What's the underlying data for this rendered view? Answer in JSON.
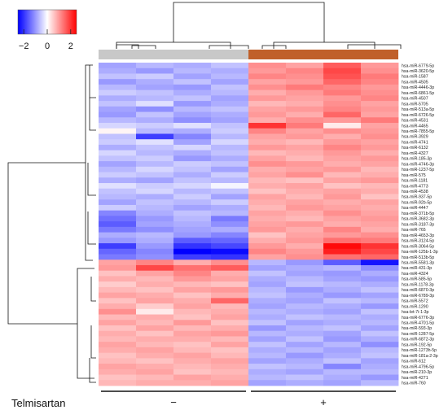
{
  "chart_data": {
    "type": "heatmap",
    "colors": {
      "low": "#0000ff",
      "mid": "#ffffff",
      "high": "#ff0000"
    },
    "color_scale": {
      "min": -2.5,
      "max": 2.5,
      "ticks": [
        -2,
        0,
        2
      ],
      "tick_labels": [
        "−2",
        "0",
        "2"
      ]
    },
    "annotation": {
      "label": "Telmisartan",
      "groups": [
        {
          "label": "−",
          "color": "#c8c8c8",
          "columns": [
            0,
            1,
            2,
            3
          ]
        },
        {
          "label": "+",
          "color": "#c0602a",
          "columns": [
            4,
            5,
            6,
            7
          ]
        }
      ]
    },
    "rows": [
      "hsa-miR-6779-5p",
      "hsa-miR-3620-5p",
      "hsa-miR-1587",
      "hsa-miR-4505",
      "hsa-miR-4446-3p",
      "hsa-miR-6861-5p",
      "hsa-miR-4507",
      "hsa-miR-5705",
      "hsa-miR-513a-5p",
      "hsa-miR-6726-5p",
      "hsa-miR-4531",
      "hsa-miR-4465",
      "hsa-miR-7855-5p",
      "hsa-miR-3929",
      "hsa-miR-4741",
      "hsa-miR-6132",
      "hsa-miR-4327",
      "hsa-miR-185-3p",
      "hsa-miR-4746-3p",
      "hsa-miR-1237-5p",
      "hsa-miR-575",
      "hsa-miR-1181",
      "hsa-miR-4773",
      "hsa-miR-4538",
      "hsa-miR-937-5p",
      "hsa-miR-92b-5p",
      "hsa-miR-4447",
      "hsa-miR-371b-5p",
      "hsa-miR-3682-3p",
      "hsa-miR-3187-3p",
      "hsa-miR-765",
      "hsa-miR-4653-3p",
      "hsa-miR-3124-5p",
      "hsa-miR-3064-5p",
      "hsa-miR-125b-1-3p",
      "hsa-miR-513b-5p",
      "hsa-miR-5581-3p",
      "hsa-miR-431-3p",
      "hsa-miR-4324",
      "hsa-miR-585-5p",
      "hsa-miR-1178-3p",
      "hsa-miR-6870-3p",
      "hsa-miR-6789-3p",
      "hsa-miR-5572",
      "hsa-miR-1290",
      "hsa-let-7i-1-3p",
      "hsa-miR-6776-3p",
      "hsa-miR-4701-5p",
      "hsa-miR-593-3p",
      "hsa-miR-1287-5p",
      "hsa-miR-6872-3p",
      "hsa-miR-192-5p",
      "hsa-miR-1273h-5p",
      "hsa-miR-181a-2-3p",
      "hsa-miR-612",
      "hsa-miR-4796-5p",
      "hsa-miR-210-3p",
      "hsa-miR-4271",
      "hsa-miR-760"
    ],
    "values": [
      [
        -0.9,
        -0.7,
        -0.8,
        -0.6,
        1.1,
        0.9,
        1.6,
        1.0
      ],
      [
        -0.8,
        -1.0,
        -0.7,
        -0.8,
        1.0,
        1.2,
        1.8,
        1.1
      ],
      [
        -0.6,
        -0.5,
        -0.9,
        -0.7,
        1.2,
        1.1,
        1.7,
        1.3
      ],
      [
        -1.0,
        -0.8,
        -0.6,
        -0.9,
        0.9,
        1.0,
        1.5,
        1.2
      ],
      [
        -0.7,
        -0.9,
        -1.0,
        -0.6,
        1.1,
        1.3,
        1.2,
        1.0
      ],
      [
        -0.5,
        -0.6,
        -0.8,
        -0.7,
        0.8,
        1.0,
        1.3,
        1.1
      ],
      [
        -0.8,
        -0.7,
        -0.6,
        -0.9,
        1.0,
        0.9,
        1.0,
        1.2
      ],
      [
        -0.6,
        -0.3,
        -1.0,
        -0.8,
        0.7,
        0.8,
        1.1,
        0.9
      ],
      [
        -0.9,
        -1.1,
        -0.7,
        -0.6,
        0.9,
        1.0,
        1.2,
        1.0
      ],
      [
        -1.0,
        -0.6,
        -0.9,
        -0.8,
        1.0,
        0.8,
        1.5,
        0.9
      ],
      [
        -0.7,
        -0.8,
        -1.1,
        -0.9,
        0.8,
        1.1,
        1.0,
        1.3
      ],
      [
        -0.4,
        -0.5,
        -0.3,
        -0.6,
        2.0,
        1.3,
        0.2,
        0.9
      ],
      [
        0.1,
        -0.7,
        -0.8,
        -0.5,
        1.2,
        0.9,
        1.1,
        1.0
      ],
      [
        -0.6,
        -1.9,
        -1.2,
        -0.7,
        0.9,
        1.0,
        0.8,
        1.1
      ],
      [
        -0.5,
        -0.3,
        -0.9,
        -0.4,
        0.8,
        0.7,
        1.0,
        0.9
      ],
      [
        -0.8,
        -0.6,
        -0.4,
        -0.7,
        1.0,
        0.9,
        1.2,
        1.0
      ],
      [
        -0.4,
        -0.7,
        -0.8,
        -0.6,
        0.7,
        0.8,
        1.0,
        0.8
      ],
      [
        -0.6,
        -0.5,
        -1.0,
        -0.8,
        0.9,
        0.7,
        0.9,
        1.0
      ],
      [
        -0.9,
        -0.7,
        -0.5,
        -0.6,
        1.1,
        1.0,
        0.8,
        0.9
      ],
      [
        -0.7,
        -0.4,
        -0.6,
        -0.9,
        0.8,
        0.9,
        1.0,
        0.7
      ],
      [
        -0.5,
        -0.6,
        -0.8,
        -0.5,
        0.9,
        1.1,
        0.7,
        0.8
      ],
      [
        -0.8,
        -0.9,
        -0.6,
        -0.7,
        0.7,
        0.6,
        0.9,
        1.0
      ],
      [
        -0.3,
        -0.5,
        -0.4,
        -0.1,
        0.8,
        0.9,
        0.6,
        0.7
      ],
      [
        -0.6,
        -0.4,
        -0.7,
        -0.6,
        0.6,
        0.8,
        0.9,
        0.8
      ],
      [
        -0.7,
        -0.8,
        -0.5,
        -0.9,
        0.9,
        0.7,
        1.0,
        0.6
      ],
      [
        -0.9,
        -0.6,
        -0.7,
        -0.5,
        0.8,
        0.9,
        0.8,
        0.9
      ],
      [
        -0.5,
        -0.7,
        -0.9,
        -0.8,
        0.7,
        1.0,
        0.9,
        0.8
      ],
      [
        -1.2,
        -0.8,
        -0.6,
        -0.7,
        0.9,
        0.8,
        1.1,
        0.9
      ],
      [
        -1.4,
        -1.0,
        -0.7,
        -1.3,
        0.8,
        0.7,
        0.9,
        1.0
      ],
      [
        -1.6,
        -0.9,
        -0.8,
        -1.1,
        0.9,
        1.0,
        0.8,
        0.9
      ],
      [
        -1.3,
        -1.1,
        -0.9,
        -0.8,
        1.0,
        0.8,
        1.2,
        0.8
      ],
      [
        -0.8,
        -0.7,
        -1.0,
        -1.2,
        0.6,
        0.9,
        1.0,
        1.1
      ],
      [
        -1.0,
        -0.8,
        -1.6,
        -1.5,
        0.8,
        1.0,
        1.4,
        1.3
      ],
      [
        -1.9,
        -1.0,
        -2.0,
        -1.8,
        1.0,
        0.8,
        2.4,
        2.0
      ],
      [
        -1.5,
        -1.2,
        -2.5,
        -2.4,
        1.2,
        1.0,
        2.2,
        1.8
      ],
      [
        -1.3,
        -1.1,
        -1.9,
        -2.0,
        0.9,
        1.1,
        1.4,
        1.5
      ],
      [
        0.9,
        1.2,
        0.8,
        1.1,
        -0.7,
        -1.0,
        -1.6,
        -2.3
      ],
      [
        1.0,
        1.8,
        1.4,
        1.6,
        -0.9,
        -0.8,
        -0.7,
        -1.1
      ],
      [
        0.6,
        0.9,
        1.2,
        0.8,
        -0.6,
        -0.9,
        -1.0,
        -0.8
      ],
      [
        0.8,
        0.7,
        1.0,
        0.9,
        -0.8,
        -0.7,
        -0.9,
        -1.0
      ],
      [
        0.5,
        0.8,
        0.7,
        0.6,
        -0.9,
        -0.6,
        -0.7,
        -0.8
      ],
      [
        0.7,
        0.6,
        0.9,
        1.0,
        -0.7,
        -1.0,
        -0.8,
        -0.6
      ],
      [
        0.9,
        0.8,
        0.6,
        0.8,
        -0.6,
        -0.8,
        -1.0,
        -0.9
      ],
      [
        0.6,
        0.9,
        0.8,
        1.5,
        -0.8,
        -0.9,
        -0.6,
        -0.7
      ],
      [
        0.8,
        0.5,
        0.9,
        0.7,
        -0.9,
        -0.7,
        -0.8,
        -1.0
      ],
      [
        1.1,
        0.2,
        0.7,
        0.8,
        -0.7,
        -0.8,
        -0.9,
        -0.6
      ],
      [
        0.7,
        0.8,
        0.6,
        0.9,
        -0.8,
        -0.6,
        -0.7,
        -0.8
      ],
      [
        0.9,
        0.7,
        1.0,
        0.6,
        -0.6,
        -0.9,
        -0.8,
        -0.7
      ],
      [
        0.6,
        0.9,
        0.7,
        0.8,
        -1.0,
        -0.7,
        -0.6,
        -0.9
      ],
      [
        0.8,
        0.6,
        0.9,
        1.0,
        -0.7,
        -0.8,
        -0.9,
        -0.6
      ],
      [
        0.7,
        0.8,
        0.8,
        0.7,
        -0.9,
        -0.6,
        -1.0,
        -0.8
      ],
      [
        0.9,
        0.7,
        0.6,
        0.9,
        -0.6,
        -0.9,
        -0.7,
        -1.1
      ],
      [
        0.8,
        0.9,
        0.7,
        0.6,
        -0.8,
        -0.7,
        -0.9,
        -0.7
      ],
      [
        0.6,
        0.8,
        0.9,
        0.7,
        -0.7,
        -1.0,
        -0.8,
        -0.6
      ],
      [
        0.7,
        0.6,
        0.8,
        0.9,
        -0.9,
        -0.8,
        -0.6,
        -0.9
      ],
      [
        0.9,
        0.8,
        0.7,
        0.8,
        -0.6,
        -0.7,
        -1.2,
        -0.8
      ],
      [
        0.8,
        0.9,
        0.6,
        0.7,
        -0.8,
        -0.9,
        -0.7,
        -0.7
      ],
      [
        0.6,
        0.7,
        0.9,
        0.8,
        -0.7,
        -0.6,
        -0.8,
        -1.0
      ],
      [
        0.7,
        0.8,
        0.8,
        0.9,
        -0.9,
        -0.8,
        -0.9,
        -0.7
      ]
    ]
  }
}
